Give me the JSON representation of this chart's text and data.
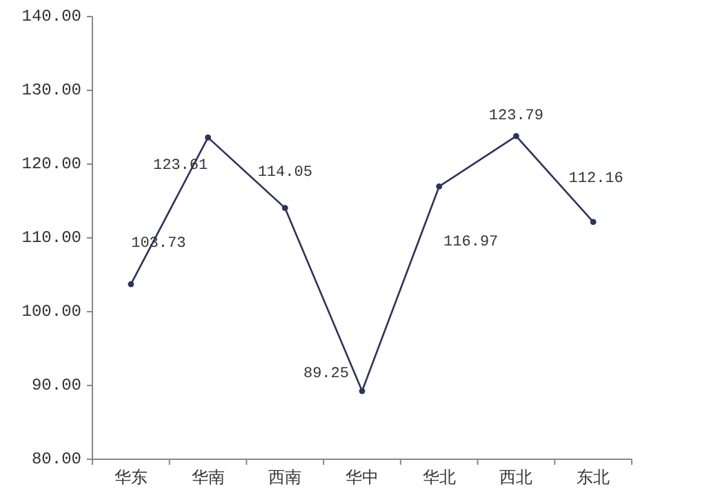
{
  "chart_data": {
    "type": "line",
    "categories": [
      "华东",
      "华南",
      "西南",
      "华中",
      "华北",
      "西北",
      "东北"
    ],
    "series": [
      {
        "color": "#2b3557",
        "values": [
          103.73,
          123.61,
          114.05,
          89.25,
          116.97,
          123.79,
          112.16
        ]
      }
    ],
    "ylim": [
      80,
      140
    ],
    "yticks": [
      {
        "value": 80,
        "label": "80.00"
      },
      {
        "value": 90,
        "label": "90.00"
      },
      {
        "value": 100,
        "label": "100.00"
      },
      {
        "value": 110,
        "label": "110.00"
      },
      {
        "value": 120,
        "label": "120.00"
      },
      {
        "value": 130,
        "label": "130.00"
      },
      {
        "value": 140,
        "label": "140.00"
      }
    ],
    "data_labels": true,
    "marker": "circle",
    "line_style": "solid",
    "grid": false
  }
}
